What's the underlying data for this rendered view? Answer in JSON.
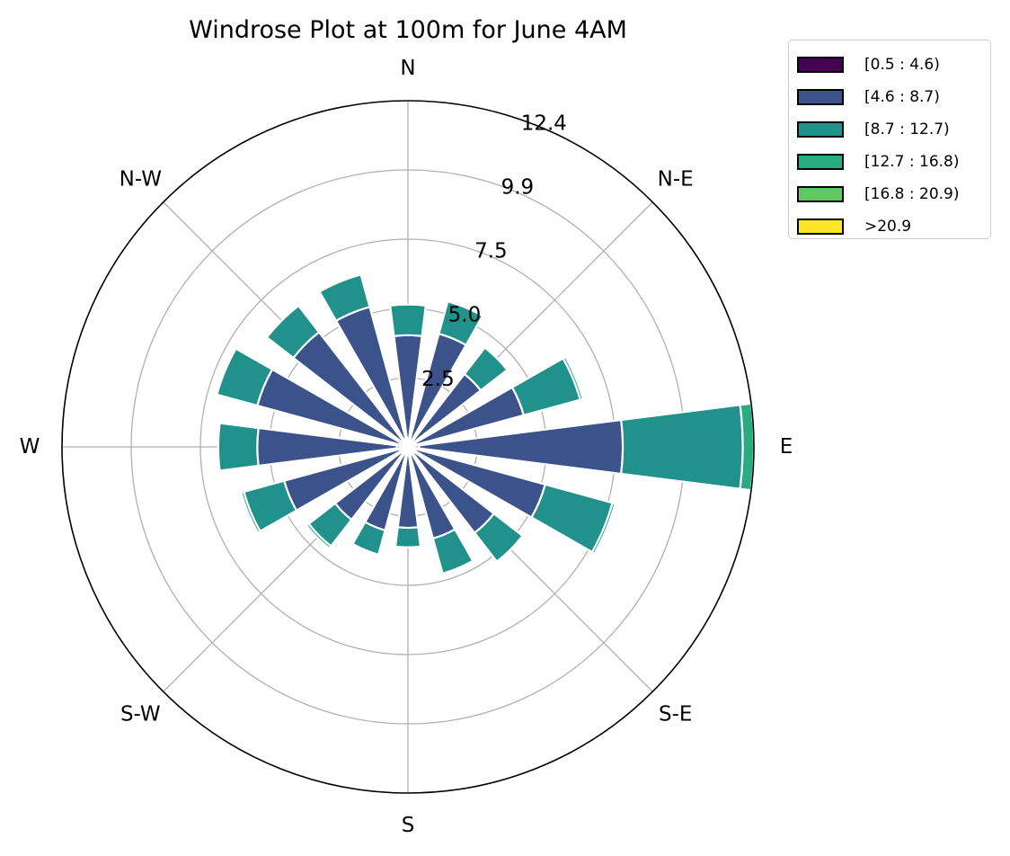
{
  "chart_data": {
    "type": "bar",
    "polar": true,
    "title": "Windrose Plot at 100m for June 4AM",
    "direction_labels": [
      "N",
      "N-E",
      "E",
      "S-E",
      "S",
      "S-W",
      "W",
      "N-W"
    ],
    "radial_ticks": [
      "2.5",
      "5.0",
      "7.5",
      "9.9",
      "12.4"
    ],
    "radial_tick_values": [
      2.48,
      4.96,
      7.44,
      9.92,
      12.4
    ],
    "rmax": 12.4,
    "sectors_deg": [
      0,
      22.5,
      45,
      67.5,
      90,
      112.5,
      135,
      157.5,
      180,
      202.5,
      225,
      247.5,
      270,
      292.5,
      315,
      337.5
    ],
    "series": [
      {
        "name": "[0.5 : 4.6)",
        "color": "#440154",
        "values": [
          0.3,
          0.3,
          0.3,
          0.3,
          0.4,
          0.3,
          0.3,
          0.3,
          0.3,
          0.3,
          0.3,
          0.3,
          0.4,
          0.3,
          0.3,
          0.3
        ]
      },
      {
        "name": "[4.6 : 8.7)",
        "color": "#3b528b",
        "values": [
          3.7,
          3.9,
          3.0,
          4.0,
          7.3,
          4.8,
          3.6,
          3.1,
          2.6,
          2.8,
          3.0,
          4.3,
          5.0,
          5.3,
          4.9,
          4.9
        ]
      },
      {
        "name": "[8.7 : 12.7)",
        "color": "#21918c",
        "values": [
          1.1,
          1.2,
          1.2,
          2.1,
          4.3,
          2.5,
          1.3,
          1.3,
          0.7,
          0.9,
          1.2,
          1.5,
          1.4,
          1.5,
          1.2,
          1.2
        ]
      },
      {
        "name": "[12.7 : 16.8)",
        "color": "#27ad81",
        "values": [
          0,
          0,
          0,
          0.1,
          0.4,
          0.1,
          0,
          0,
          0,
          0,
          0.1,
          0.1,
          0,
          0,
          0,
          0
        ]
      },
      {
        "name": "[16.8 : 20.9)",
        "color": "#5ec962",
        "values": [
          0,
          0,
          0,
          0,
          0,
          0,
          0,
          0,
          0,
          0,
          0,
          0,
          0,
          0,
          0,
          0
        ]
      },
      {
        "name": ">20.9",
        "color": "#fde725",
        "values": [
          0,
          0,
          0,
          0,
          0,
          0,
          0,
          0,
          0,
          0,
          0,
          0,
          0,
          0,
          0,
          0
        ]
      }
    ],
    "grid": true,
    "legend_position": "top-right"
  }
}
